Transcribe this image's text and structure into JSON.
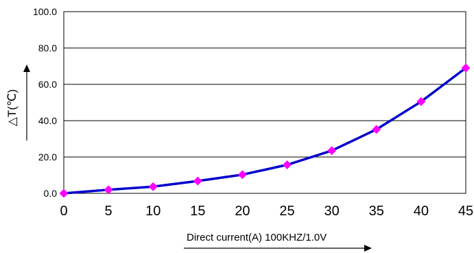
{
  "chart_data": {
    "type": "line",
    "x": [
      0,
      5,
      10,
      15,
      20,
      25,
      30,
      35,
      40,
      45
    ],
    "series": [
      {
        "values": [
          0.0,
          2.0,
          3.7,
          6.8,
          10.3,
          15.7,
          23.5,
          35.2,
          50.5,
          69.0
        ],
        "line_color": "#0000cc",
        "marker_color": "#ff00ff",
        "marker": "diamond"
      }
    ],
    "xlim": [
      0,
      45
    ],
    "ylim": [
      0,
      100
    ],
    "x_ticks": [
      "0",
      "5",
      "10",
      "15",
      "20",
      "25",
      "30",
      "35",
      "40",
      "45"
    ],
    "y_ticks": [
      "0.0",
      "20.0",
      "40.0",
      "60.0",
      "80.0",
      "100.0"
    ],
    "xlabel": "Direct current(A) 100KHZ/1.0V",
    "ylabel": "△T(℃)",
    "grid": "horizontal",
    "legend": "none"
  }
}
